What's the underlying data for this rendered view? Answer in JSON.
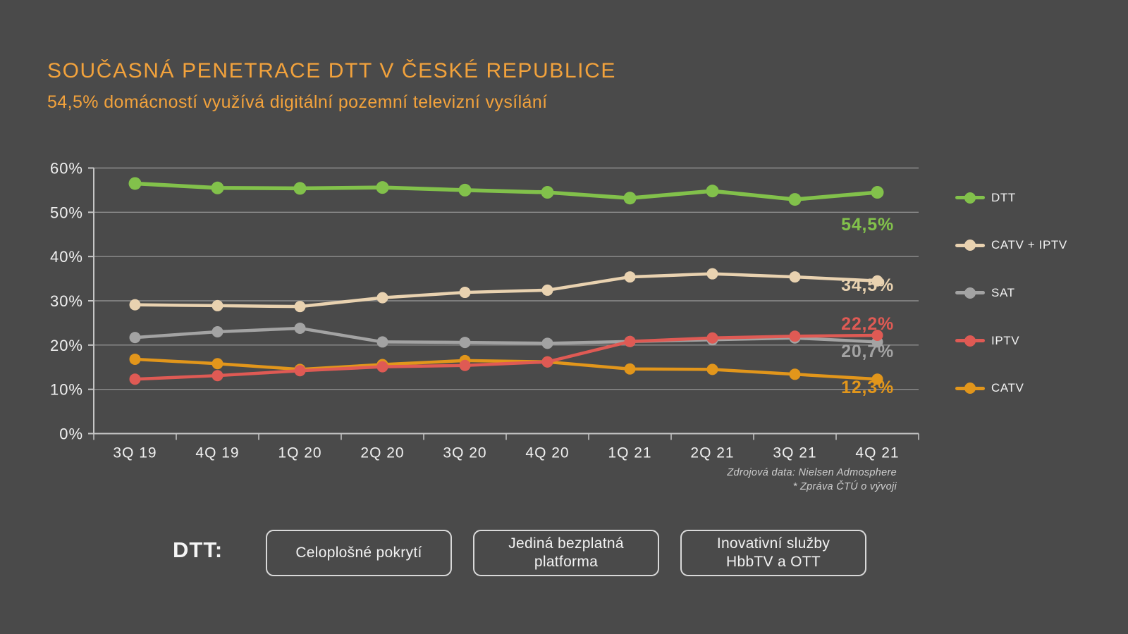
{
  "page": {
    "background": "#4A4A4A"
  },
  "header": {
    "title": "SOUČASNÁ PENETRACE DTT V ČESKÉ REPUBLICE",
    "subtitle": "54,5% domácností využívá digitální pozemní televizní vysílání",
    "accent_color": "#F2A23C"
  },
  "chart_data": {
    "type": "line",
    "categories": [
      "3Q 19",
      "4Q 19",
      "1Q 20",
      "2Q 20",
      "3Q 20",
      "4Q 20",
      "1Q 21",
      "2Q 21",
      "3Q 21",
      "4Q 21"
    ],
    "series": [
      {
        "name": "DTT",
        "color": "#82C14B",
        "values": [
          56.5,
          55.5,
          55.4,
          55.6,
          55.0,
          54.5,
          53.2,
          54.8,
          52.9,
          54.5
        ],
        "end_label": "54,5%"
      },
      {
        "name": "CATV + IPTV",
        "color": "#E9D2B0",
        "values": [
          29.1,
          28.9,
          28.7,
          30.7,
          31.9,
          32.4,
          35.4,
          36.1,
          35.4,
          34.5
        ],
        "end_label": "34,5%"
      },
      {
        "name": "SAT",
        "color": "#A3A3A3",
        "values": [
          21.7,
          23.0,
          23.8,
          20.7,
          20.6,
          20.4,
          20.8,
          21.2,
          21.6,
          20.7
        ],
        "end_label": "20,7%"
      },
      {
        "name": "IPTV",
        "color": "#DF5A54",
        "values": [
          12.3,
          13.1,
          14.2,
          15.1,
          15.4,
          16.2,
          20.8,
          21.6,
          22.0,
          22.2
        ],
        "end_label": "22,2%"
      },
      {
        "name": "CATV",
        "color": "#E2961B",
        "values": [
          16.8,
          15.8,
          14.5,
          15.6,
          16.5,
          16.2,
          14.6,
          14.5,
          13.4,
          12.3
        ],
        "end_label": "12,3%"
      }
    ],
    "y_ticks": [
      "0%",
      "10%",
      "20%",
      "30%",
      "40%",
      "50%",
      "60%"
    ],
    "ylim": [
      0,
      60
    ],
    "grid": true,
    "legend_position": "right"
  },
  "source_note": {
    "line1": "Zdrojová data: Nielsen Admosphere",
    "line2": "* Zpráva ČTÚ o vývoji"
  },
  "footer": {
    "label": "DTT:",
    "boxes": [
      "Celoplošné pokrytí",
      "Jediná bezplatná platforma",
      "Inovativní služby HbbTV a OTT"
    ]
  }
}
